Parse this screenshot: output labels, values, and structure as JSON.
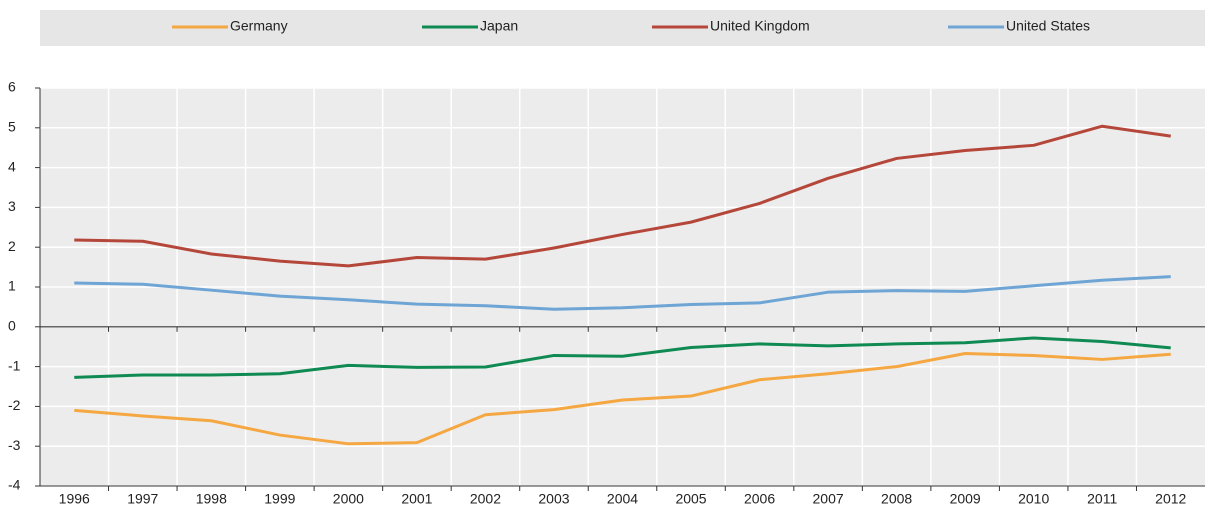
{
  "chart_data": {
    "type": "line",
    "categories": [
      "1996",
      "1997",
      "1998",
      "1999",
      "2000",
      "2001",
      "2002",
      "2003",
      "2004",
      "2005",
      "2006",
      "2007",
      "2008",
      "2009",
      "2010",
      "2011",
      "2012"
    ],
    "series": [
      {
        "name": "Germany",
        "color": "#f5a742",
        "values": [
          -2.1,
          -2.24,
          -2.36,
          -2.72,
          -2.94,
          -2.91,
          -2.21,
          -2.08,
          -1.84,
          -1.74,
          -1.33,
          -1.18,
          -1.0,
          -0.67,
          -0.72,
          -0.82,
          -0.69
        ]
      },
      {
        "name": "Japan",
        "color": "#0f8a52",
        "values": [
          -1.27,
          -1.21,
          -1.21,
          -1.18,
          -0.97,
          -1.02,
          -1.01,
          -0.72,
          -0.74,
          -0.52,
          -0.43,
          -0.48,
          -0.43,
          -0.4,
          -0.28,
          -0.37,
          -0.53
        ]
      },
      {
        "name": "United Kingdom",
        "color": "#b5473a",
        "values": [
          2.18,
          2.15,
          1.83,
          1.65,
          1.53,
          1.74,
          1.7,
          1.98,
          2.32,
          2.63,
          3.1,
          3.73,
          4.23,
          4.43,
          4.56,
          5.04,
          4.79
        ]
      },
      {
        "name": "United States",
        "color": "#6ea5d5",
        "values": [
          1.1,
          1.07,
          0.92,
          0.77,
          0.68,
          0.57,
          0.53,
          0.44,
          0.48,
          0.56,
          0.6,
          0.87,
          0.91,
          0.89,
          1.03,
          1.17,
          1.26
        ]
      }
    ],
    "ylim": [
      -4,
      6
    ],
    "yticks": [
      -4,
      -3,
      -2,
      -1,
      0,
      1,
      2,
      3,
      4,
      5,
      6
    ],
    "grid": true,
    "legend": "top"
  }
}
